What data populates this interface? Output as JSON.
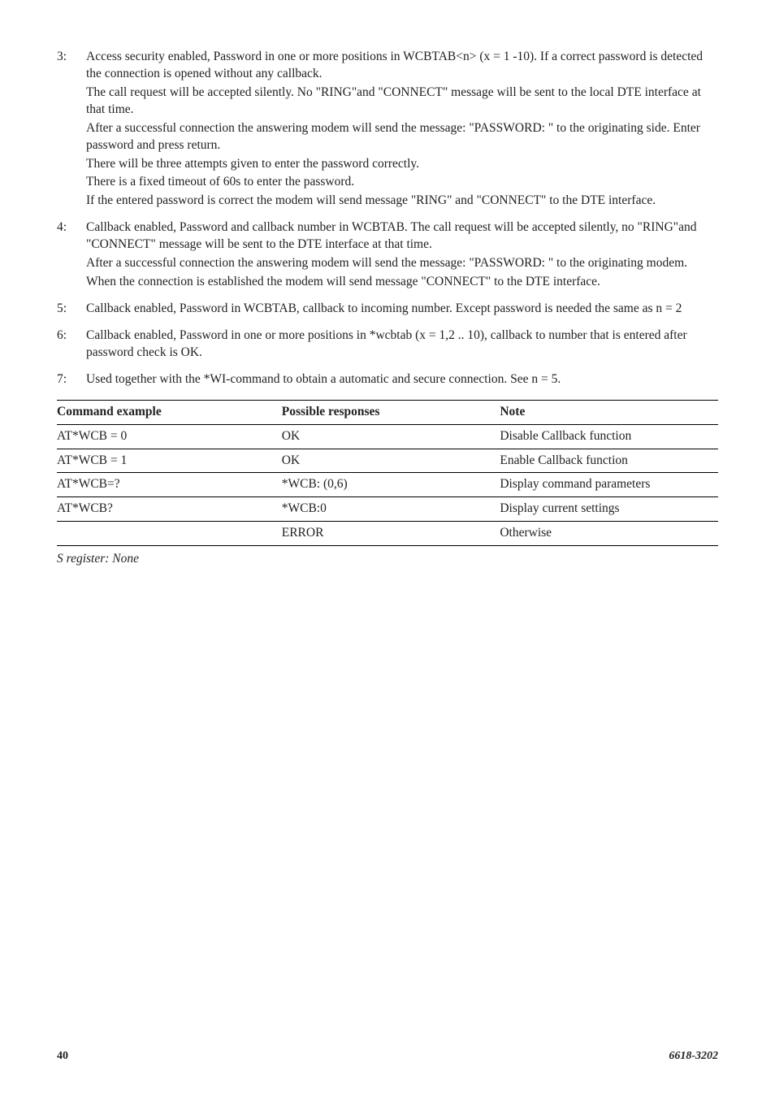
{
  "items": [
    {
      "num": "3:",
      "paras": [
        "Access security enabled, Password in one or more positions in WCBTAB<n> (x = 1 -10). If a correct password is detected the connection is opened without any callback.",
        "The call request will be accepted silently. No \"RING\"and \"CONNECT\" message will be sent to the local DTE interface at that time.",
        "After a successful connection the answering modem will send the message: \"PASSWORD: \" to the originating side. Enter password and press return.",
        "There will be three attempts given to enter the password correctly.",
        "There is a fixed timeout of 60s to enter the password.",
        "If the entered password is correct the modem will send message \"RING\" and \"CONNECT\" to the DTE interface."
      ]
    },
    {
      "num": "4:",
      "paras": [
        "Callback enabled, Password and callback number in WCBTAB. The call request will be accepted silently, no \"RING\"and \"CONNECT\" message will be sent to the DTE interface at that time.",
        "After a successful connection the answering modem will send the message: \"PASSWORD: \" to the originating modem.",
        "When the connection is established the modem will send message \"CONNECT\" to the DTE interface."
      ]
    },
    {
      "num": "5:",
      "paras": [
        "Callback enabled, Password in WCBTAB, callback to incoming number. Except password is needed the same as n = 2"
      ]
    },
    {
      "num": "6:",
      "paras": [
        "Callback enabled, Password in one or more positions in *wcbtab (x = 1,2 .. 10), callback to number that is entered after password check is OK."
      ]
    },
    {
      "num": "7:",
      "paras": [
        "Used together with the *WI-command to obtain a automatic and secure connection. See n = 5."
      ]
    }
  ],
  "table": {
    "headers": [
      "Command example",
      "Possible responses",
      "Note"
    ],
    "col_widths": [
      "34%",
      "33%",
      "33%"
    ],
    "rows": [
      [
        "AT*WCB = 0",
        "OK",
        "Disable Callback function"
      ],
      [
        "AT*WCB = 1",
        "OK",
        "Enable Callback function"
      ],
      [
        "AT*WCB=?",
        "*WCB: (0,6)",
        "Display command parameters"
      ],
      [
        "AT*WCB?",
        "*WCB:0",
        "Display current settings"
      ],
      [
        "",
        "ERROR",
        "Otherwise"
      ]
    ]
  },
  "sregister": "S register: None",
  "footer": {
    "page": "40",
    "docnum": "6618-3202"
  },
  "colors": {
    "text": "#222222",
    "rule": "#000000",
    "bg": "#ffffff"
  }
}
